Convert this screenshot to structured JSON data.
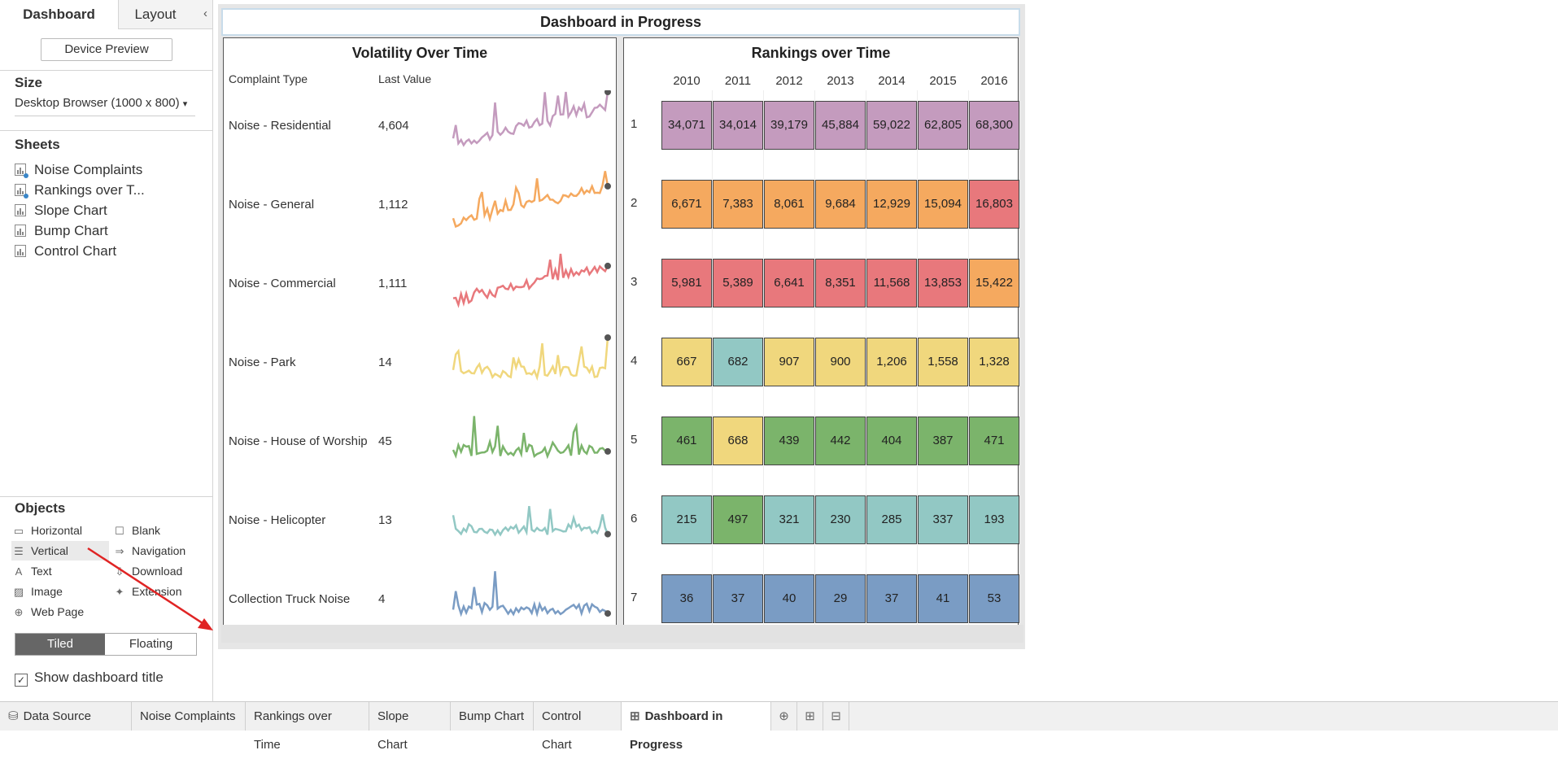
{
  "left_panel": {
    "tabs": [
      "Dashboard",
      "Layout"
    ],
    "collapse_glyph": "‹",
    "device_preview": "Device Preview",
    "size_title": "Size",
    "size_value": "Desktop Browser (1000 x 800)",
    "size_dropdown_glyph": "▾",
    "sheets_title": "Sheets",
    "sheets": [
      "Noise Complaints",
      "Rankings over T...",
      "Slope Chart",
      "Bump Chart",
      "Control Chart"
    ],
    "objects_title": "Objects",
    "objects": [
      {
        "label": "Horizontal",
        "icon": "horizontal-icon",
        "glyph": "▭"
      },
      {
        "label": "Blank",
        "icon": "blank-icon",
        "glyph": "☐"
      },
      {
        "label": "Vertical",
        "icon": "vertical-icon",
        "glyph": "☰"
      },
      {
        "label": "Navigation",
        "icon": "navigation-icon",
        "glyph": "⇒"
      },
      {
        "label": "Text",
        "icon": "text-icon",
        "glyph": "A"
      },
      {
        "label": "Download",
        "icon": "download-icon",
        "glyph": "⇩"
      },
      {
        "label": "Image",
        "icon": "image-icon",
        "glyph": "▨"
      },
      {
        "label": "Extension",
        "icon": "extension-icon",
        "glyph": "✦"
      },
      {
        "label": "Web Page",
        "icon": "globe-icon",
        "glyph": "⊕"
      }
    ],
    "tiled": "Tiled",
    "floating": "Floating",
    "show_title": "Show dashboard title",
    "check_glyph": "✓"
  },
  "dashboard": {
    "title": "Dashboard in Progress",
    "volatility": {
      "title": "Volatility Over Time",
      "col_type": "Complaint Type",
      "col_last": "Last Value",
      "rows": [
        {
          "type": "Noise - Residential",
          "last": "4,604",
          "color": "#c49bbe"
        },
        {
          "type": "Noise - General",
          "last": "1,112",
          "color": "#f5a95f"
        },
        {
          "type": "Noise - Commercial",
          "last": "1,111",
          "color": "#e8787c"
        },
        {
          "type": "Noise - Park",
          "last": "14",
          "color": "#f0d77d"
        },
        {
          "type": "Noise - House of Worship",
          "last": "45",
          "color": "#7bb46b"
        },
        {
          "type": "Noise - Helicopter",
          "last": "13",
          "color": "#92c8c4"
        },
        {
          "type": "Collection Truck Noise",
          "last": "4",
          "color": "#7a9cc4"
        }
      ]
    },
    "rankings": {
      "title": "Rankings over Time",
      "years": [
        "2010",
        "2011",
        "2012",
        "2013",
        "2014",
        "2015",
        "2016"
      ],
      "ranks": [
        {
          "rank": "1",
          "cells": [
            {
              "v": "34,071",
              "c": "#c49bbe"
            },
            {
              "v": "34,014",
              "c": "#c49bbe"
            },
            {
              "v": "39,179",
              "c": "#c49bbe"
            },
            {
              "v": "45,884",
              "c": "#c49bbe"
            },
            {
              "v": "59,022",
              "c": "#c49bbe"
            },
            {
              "v": "62,805",
              "c": "#c49bbe"
            },
            {
              "v": "68,300",
              "c": "#c49bbe"
            }
          ]
        },
        {
          "rank": "2",
          "cells": [
            {
              "v": "6,671",
              "c": "#f5a95f"
            },
            {
              "v": "7,383",
              "c": "#f5a95f"
            },
            {
              "v": "8,061",
              "c": "#f5a95f"
            },
            {
              "v": "9,684",
              "c": "#f5a95f"
            },
            {
              "v": "12,929",
              "c": "#f5a95f"
            },
            {
              "v": "15,094",
              "c": "#f5a95f"
            },
            {
              "v": "16,803",
              "c": "#e8787c"
            }
          ]
        },
        {
          "rank": "3",
          "cells": [
            {
              "v": "5,981",
              "c": "#e8787c"
            },
            {
              "v": "5,389",
              "c": "#e8787c"
            },
            {
              "v": "6,641",
              "c": "#e8787c"
            },
            {
              "v": "8,351",
              "c": "#e8787c"
            },
            {
              "v": "11,568",
              "c": "#e8787c"
            },
            {
              "v": "13,853",
              "c": "#e8787c"
            },
            {
              "v": "15,422",
              "c": "#f5a95f"
            }
          ]
        },
        {
          "rank": "4",
          "cells": [
            {
              "v": "667",
              "c": "#f0d77d"
            },
            {
              "v": "682",
              "c": "#92c8c4"
            },
            {
              "v": "907",
              "c": "#f0d77d"
            },
            {
              "v": "900",
              "c": "#f0d77d"
            },
            {
              "v": "1,206",
              "c": "#f0d77d"
            },
            {
              "v": "1,558",
              "c": "#f0d77d"
            },
            {
              "v": "1,328",
              "c": "#f0d77d"
            }
          ]
        },
        {
          "rank": "5",
          "cells": [
            {
              "v": "461",
              "c": "#7bb46b"
            },
            {
              "v": "668",
              "c": "#f0d77d"
            },
            {
              "v": "439",
              "c": "#7bb46b"
            },
            {
              "v": "442",
              "c": "#7bb46b"
            },
            {
              "v": "404",
              "c": "#7bb46b"
            },
            {
              "v": "387",
              "c": "#7bb46b"
            },
            {
              "v": "471",
              "c": "#7bb46b"
            }
          ]
        },
        {
          "rank": "6",
          "cells": [
            {
              "v": "215",
              "c": "#92c8c4"
            },
            {
              "v": "497",
              "c": "#7bb46b"
            },
            {
              "v": "321",
              "c": "#92c8c4"
            },
            {
              "v": "230",
              "c": "#92c8c4"
            },
            {
              "v": "285",
              "c": "#92c8c4"
            },
            {
              "v": "337",
              "c": "#92c8c4"
            },
            {
              "v": "193",
              "c": "#92c8c4"
            }
          ]
        },
        {
          "rank": "7",
          "cells": [
            {
              "v": "36",
              "c": "#7a9cc4"
            },
            {
              "v": "37",
              "c": "#7a9cc4"
            },
            {
              "v": "40",
              "c": "#7a9cc4"
            },
            {
              "v": "29",
              "c": "#7a9cc4"
            },
            {
              "v": "37",
              "c": "#7a9cc4"
            },
            {
              "v": "41",
              "c": "#7a9cc4"
            },
            {
              "v": "53",
              "c": "#7a9cc4"
            }
          ]
        }
      ]
    }
  },
  "bottom_tabs": [
    {
      "label": "Data Source",
      "icon": "database-icon",
      "glyph": "⛁"
    },
    {
      "label": "Noise Complaints"
    },
    {
      "label": "Rankings over Time"
    },
    {
      "label": "Slope Chart"
    },
    {
      "label": "Bump Chart"
    },
    {
      "label": "Control Chart"
    },
    {
      "label": "Dashboard in Progress",
      "icon": "dashboard-icon",
      "glyph": "⊞",
      "active": true
    }
  ],
  "bottom_tab_actions": [
    {
      "icon": "new-worksheet-icon",
      "glyph": "⊕"
    },
    {
      "icon": "new-dashboard-icon",
      "glyph": "⊞"
    },
    {
      "icon": "new-story-icon",
      "glyph": "⊟"
    }
  ],
  "colors": {
    "accent": "#e02424",
    "active_toggle": "#666666"
  }
}
